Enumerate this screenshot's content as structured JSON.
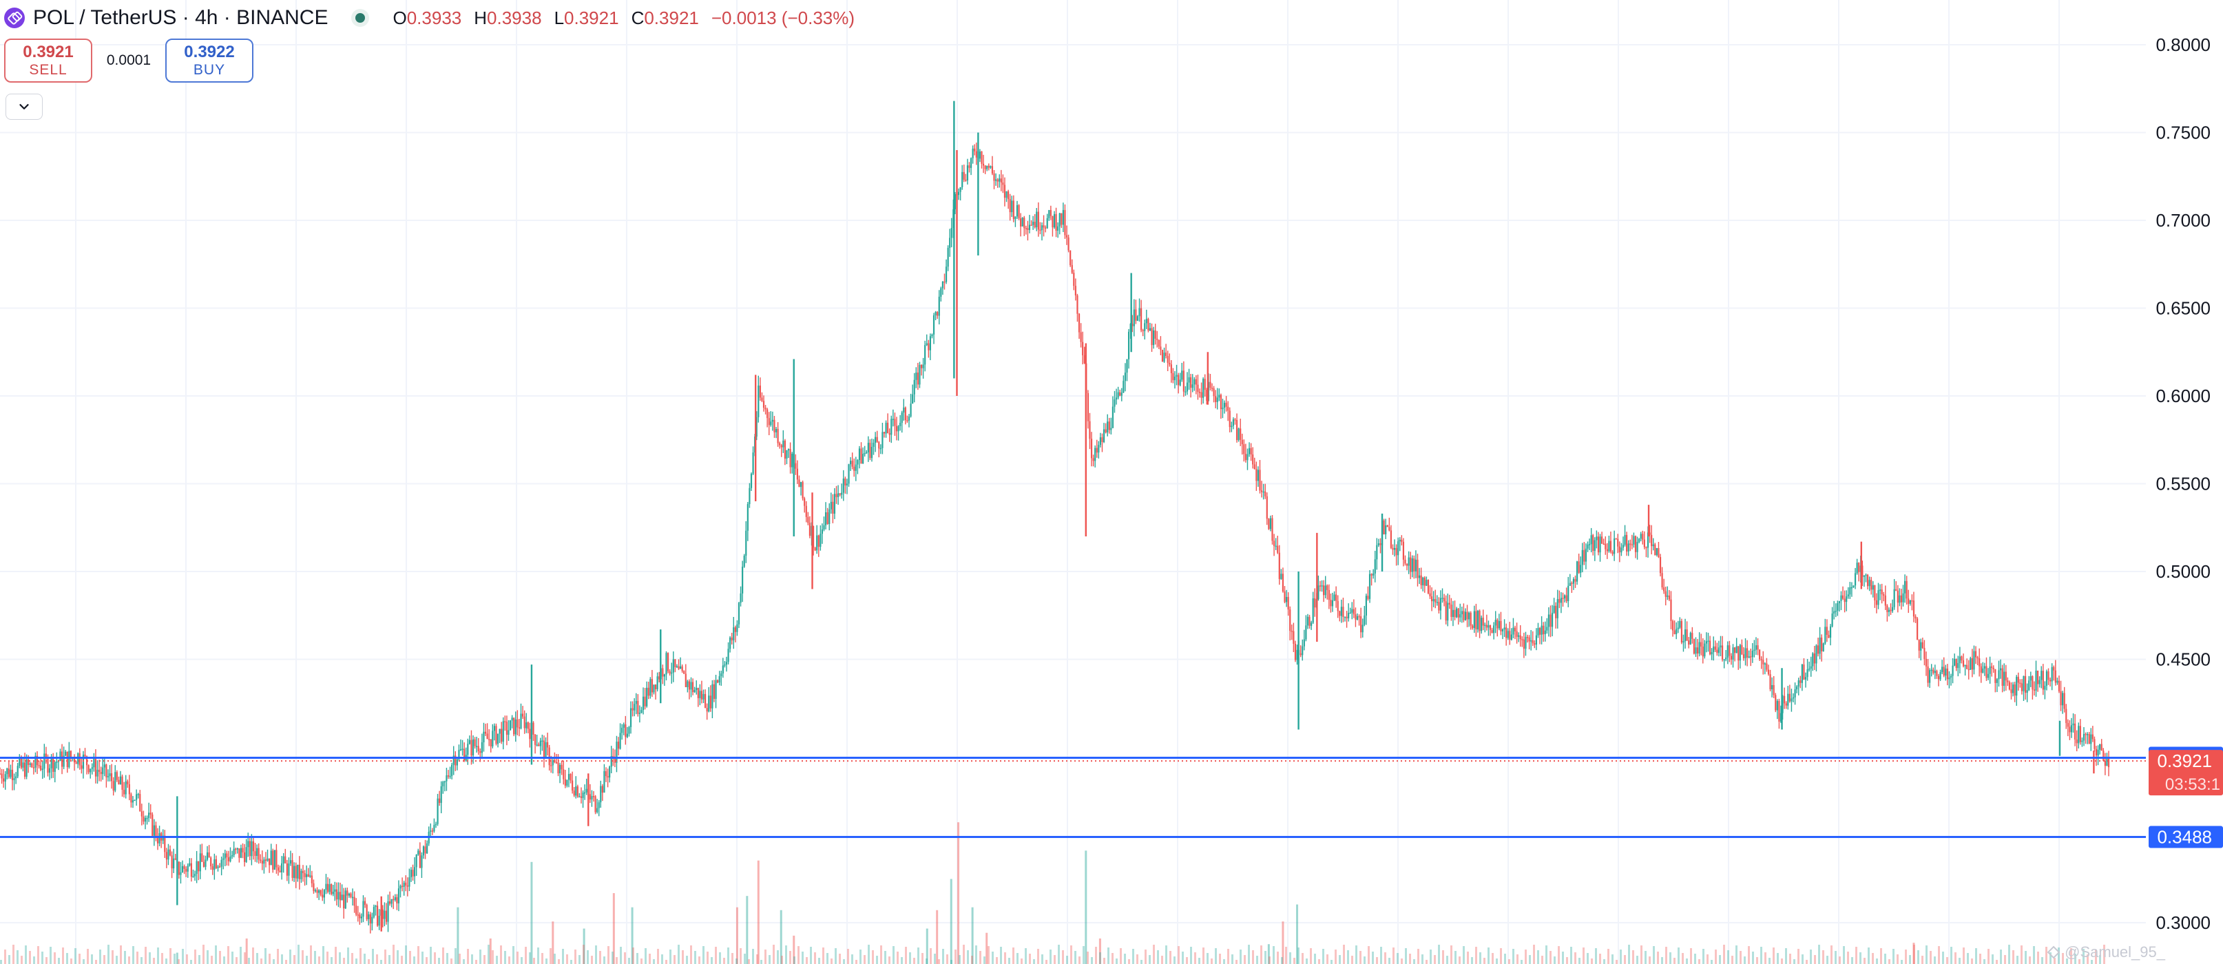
{
  "header": {
    "symbol": "POL / TetherUS · 4h · BINANCE",
    "ohlc": {
      "o_label": "O",
      "o_value": "0.3933",
      "h_label": "H",
      "h_value": "0.3938",
      "l_label": "L",
      "l_value": "0.3921",
      "c_label": "C",
      "c_value": "0.3921",
      "change": "−0.0013 (−0.33%)"
    }
  },
  "trade": {
    "sell_price": "0.3921",
    "sell_label": "SELL",
    "spread": "0.0001",
    "buy_price": "0.3922",
    "buy_label": "BUY"
  },
  "watermark": "@Samuel_95_",
  "colors": {
    "up": "#26a69a",
    "down": "#ef5350",
    "line": "#2962ff",
    "grid": "#f0f3fa"
  },
  "chart_data": {
    "type": "candlestick",
    "y_axis_ticks": [
      "0.8000",
      "0.7500",
      "0.7000",
      "0.6500",
      "0.6000",
      "0.5500",
      "0.5000",
      "0.4500",
      "0.3000"
    ],
    "ylim": [
      0.288,
      0.812
    ],
    "horizontal_lines": [
      {
        "price": 0.3939,
        "label": "0.3939"
      },
      {
        "price": 0.3488,
        "label": "0.3488"
      }
    ],
    "last_price": {
      "price": 0.3921,
      "label": "0.3921",
      "countdown": "03:53:1"
    },
    "price_path": [
      [
        0,
        0.385
      ],
      [
        55,
        0.395
      ],
      [
        95,
        0.372
      ],
      [
        125,
        0.33
      ],
      [
        180,
        0.342
      ],
      [
        230,
        0.318
      ],
      [
        270,
        0.302
      ],
      [
        300,
        0.342
      ],
      [
        320,
        0.395
      ],
      [
        370,
        0.415
      ],
      [
        395,
        0.385
      ],
      [
        420,
        0.368
      ],
      [
        440,
        0.41
      ],
      [
        470,
        0.448
      ],
      [
        500,
        0.425
      ],
      [
        520,
        0.47
      ],
      [
        535,
        0.6
      ],
      [
        560,
        0.56
      ],
      [
        575,
        0.515
      ],
      [
        600,
        0.56
      ],
      [
        640,
        0.59
      ],
      [
        665,
        0.66
      ],
      [
        675,
        0.72
      ],
      [
        690,
        0.74
      ],
      [
        720,
        0.7
      ],
      [
        750,
        0.7
      ],
      [
        765,
        0.62
      ],
      [
        770,
        0.56
      ],
      [
        790,
        0.6
      ],
      [
        800,
        0.65
      ],
      [
        830,
        0.61
      ],
      [
        860,
        0.6
      ],
      [
        890,
        0.55
      ],
      [
        900,
        0.51
      ],
      [
        915,
        0.45
      ],
      [
        930,
        0.49
      ],
      [
        960,
        0.47
      ],
      [
        975,
        0.525
      ],
      [
        1000,
        0.5
      ],
      [
        1020,
        0.478
      ],
      [
        1050,
        0.47
      ],
      [
        1080,
        0.46
      ],
      [
        1100,
        0.48
      ],
      [
        1120,
        0.515
      ],
      [
        1150,
        0.515
      ],
      [
        1165,
        0.52
      ],
      [
        1180,
        0.47
      ],
      [
        1200,
        0.455
      ],
      [
        1240,
        0.455
      ],
      [
        1255,
        0.42
      ],
      [
        1285,
        0.46
      ],
      [
        1310,
        0.5
      ],
      [
        1330,
        0.48
      ],
      [
        1345,
        0.49
      ],
      [
        1360,
        0.44
      ],
      [
        1390,
        0.45
      ],
      [
        1420,
        0.435
      ],
      [
        1450,
        0.44
      ],
      [
        1460,
        0.41
      ],
      [
        1470,
        0.405
      ],
      [
        1488,
        0.392
      ]
    ],
    "spikes": [
      [
        125,
        0.31,
        0.372
      ],
      [
        269,
        0.295,
        0.315
      ],
      [
        375,
        0.39,
        0.447
      ],
      [
        415,
        0.355,
        0.385
      ],
      [
        466,
        0.425,
        0.467
      ],
      [
        533,
        0.54,
        0.612
      ],
      [
        560,
        0.52,
        0.621
      ],
      [
        573,
        0.49,
        0.545
      ],
      [
        673,
        0.61,
        0.768
      ],
      [
        675,
        0.6,
        0.74
      ],
      [
        690,
        0.68,
        0.75
      ],
      [
        766,
        0.52,
        0.63
      ],
      [
        798,
        0.625,
        0.67
      ],
      [
        852,
        0.595,
        0.625
      ],
      [
        916,
        0.41,
        0.5
      ],
      [
        929,
        0.46,
        0.522
      ],
      [
        975,
        0.5,
        0.533
      ],
      [
        1163,
        0.52,
        0.538
      ],
      [
        1257,
        0.41,
        0.445
      ],
      [
        1313,
        0.49,
        0.517
      ],
      [
        1453,
        0.395,
        0.415
      ],
      [
        1477,
        0.385,
        0.398
      ]
    ],
    "volume": [
      [
        125,
        8
      ],
      [
        174,
        18
      ],
      [
        323,
        40
      ],
      [
        346,
        18
      ],
      [
        375,
        72
      ],
      [
        390,
        30
      ],
      [
        412,
        25
      ],
      [
        433,
        50
      ],
      [
        446,
        40
      ],
      [
        520,
        40
      ],
      [
        527,
        48
      ],
      [
        535,
        73
      ],
      [
        551,
        38
      ],
      [
        560,
        20
      ],
      [
        654,
        25
      ],
      [
        661,
        38
      ],
      [
        671,
        60
      ],
      [
        676,
        100
      ],
      [
        686,
        40
      ],
      [
        696,
        22
      ],
      [
        766,
        80
      ],
      [
        776,
        18
      ],
      [
        895,
        14
      ],
      [
        905,
        30
      ],
      [
        915,
        42
      ],
      [
        1350,
        15
      ]
    ]
  }
}
